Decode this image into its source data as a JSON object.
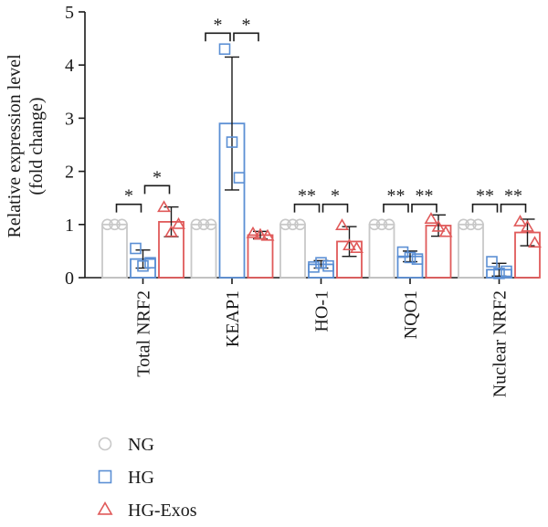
{
  "chart_data": {
    "type": "bar",
    "ylabel_line1": "Relative expression level",
    "ylabel_line2": "(fold change)",
    "ylim": [
      0,
      5
    ],
    "yticks": [
      "0",
      "1",
      "2",
      "3",
      "4",
      "5"
    ],
    "grid": false,
    "legend_position": "bottom-left",
    "categories": [
      "Total NRF2",
      "KEAP1",
      "HO-1",
      "NQO1",
      "Nuclear NRF2"
    ],
    "series": [
      {
        "name": "NG",
        "marker": "circle",
        "color": "#c8c8c8",
        "values": [
          1.0,
          1.0,
          1.0,
          1.0,
          1.0
        ],
        "errors": [
          0,
          0,
          0,
          0,
          0
        ],
        "points": [
          [
            1.0,
            1.0,
            1.0
          ],
          [
            1.0,
            1.0,
            1.0
          ],
          [
            1.0,
            1.0,
            1.0
          ],
          [
            1.0,
            1.0,
            1.0
          ],
          [
            1.0,
            1.0,
            1.0
          ]
        ]
      },
      {
        "name": "HG",
        "marker": "square",
        "color": "#5b8fd4",
        "values": [
          0.35,
          2.9,
          0.25,
          0.4,
          0.15
        ],
        "errors": [
          0.17,
          1.25,
          0.07,
          0.1,
          0.12
        ],
        "points": [
          [
            0.55,
            0.22,
            0.28
          ],
          [
            4.3,
            2.55,
            1.88
          ],
          [
            0.2,
            0.28,
            0.22
          ],
          [
            0.48,
            0.38,
            0.35
          ],
          [
            0.3,
            0.08,
            0.12
          ]
        ]
      },
      {
        "name": "HG-Exos",
        "marker": "triangle",
        "color": "#e05a5a",
        "values": [
          1.05,
          0.8,
          0.68,
          0.98,
          0.85
        ],
        "errors": [
          0.28,
          0.07,
          0.28,
          0.2,
          0.25
        ],
        "points": [
          [
            1.32,
            0.85,
            1.0
          ],
          [
            0.83,
            0.8,
            0.78
          ],
          [
            0.98,
            0.6,
            0.55
          ],
          [
            1.1,
            0.95,
            0.85
          ],
          [
            1.05,
            0.95,
            0.65
          ]
        ]
      }
    ],
    "significance": [
      {
        "category": 0,
        "from": 0,
        "to": 1,
        "label": "*",
        "y": 1.38
      },
      {
        "category": 0,
        "from": 1,
        "to": 2,
        "label": "*",
        "y": 1.73
      },
      {
        "category": 1,
        "from": 0,
        "to": 1,
        "label": "*",
        "y": 4.6
      },
      {
        "category": 1,
        "from": 1,
        "to": 2,
        "label": "*",
        "y": 4.6
      },
      {
        "category": 2,
        "from": 0,
        "to": 1,
        "label": "**",
        "y": 1.38
      },
      {
        "category": 2,
        "from": 1,
        "to": 2,
        "label": "*",
        "y": 1.38
      },
      {
        "category": 3,
        "from": 0,
        "to": 1,
        "label": "**",
        "y": 1.38
      },
      {
        "category": 3,
        "from": 1,
        "to": 2,
        "label": "**",
        "y": 1.38
      },
      {
        "category": 4,
        "from": 0,
        "to": 1,
        "label": "**",
        "y": 1.38
      },
      {
        "category": 4,
        "from": 1,
        "to": 2,
        "label": "**",
        "y": 1.38
      }
    ]
  }
}
